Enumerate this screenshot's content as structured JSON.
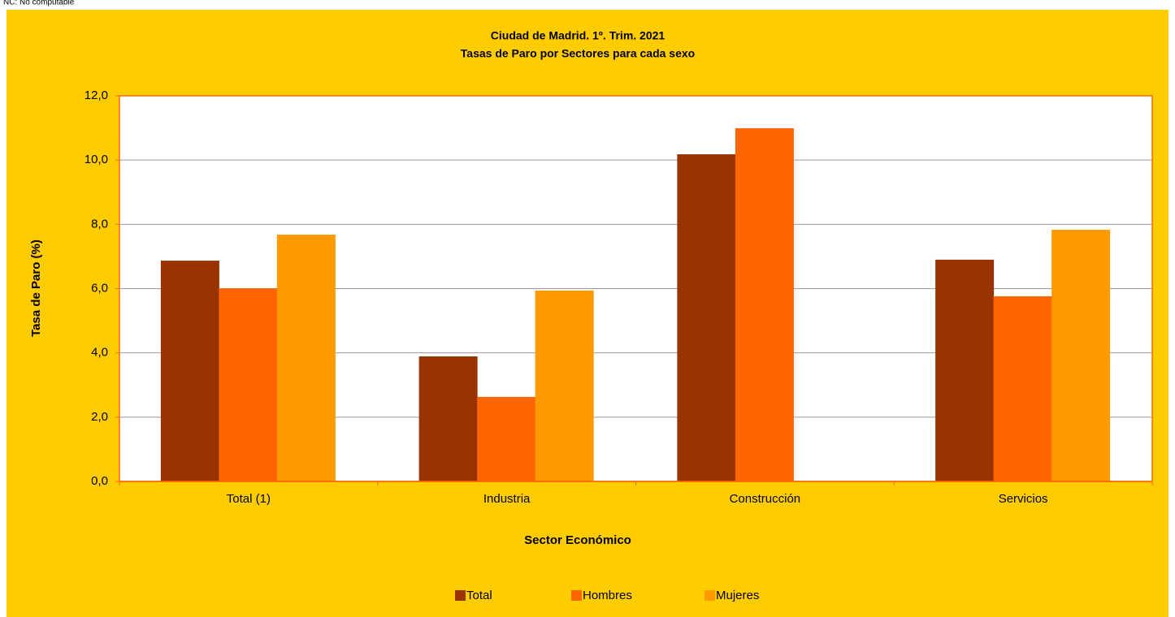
{
  "chart_data": {
    "type": "bar",
    "note": "NC: No computable",
    "title": "Ciudad de Madrid. 1º. Trim. 2021",
    "subtitle": "Tasas de Paro por Sectores para cada sexo",
    "x_label": "Sector Económico",
    "y_label": "Tasa de Paro (%)",
    "categories": [
      "Total (1)",
      "Industria",
      "Construcción",
      "Servicios"
    ],
    "series": [
      {
        "name": "Total",
        "color": "#993300",
        "values": [
          6.87,
          3.89,
          10.18,
          6.9
        ]
      },
      {
        "name": "Hombres",
        "color": "#FF6600",
        "values": [
          6.01,
          2.63,
          10.99,
          5.76
        ]
      },
      {
        "name": "Mujeres",
        "color": "#FF9900",
        "values": [
          7.68,
          5.94,
          null,
          7.83
        ]
      }
    ],
    "ylim": [
      0,
      12
    ],
    "yticks": [
      {
        "value": 0,
        "label": "0,0"
      },
      {
        "value": 2,
        "label": "2,0"
      },
      {
        "value": 4,
        "label": "4,0"
      },
      {
        "value": 6,
        "label": "6,0"
      },
      {
        "value": 8,
        "label": "8,0"
      },
      {
        "value": 10,
        "label": "10,0"
      },
      {
        "value": 12,
        "label": "12,0"
      }
    ],
    "grid": true,
    "legend": "bottom"
  }
}
